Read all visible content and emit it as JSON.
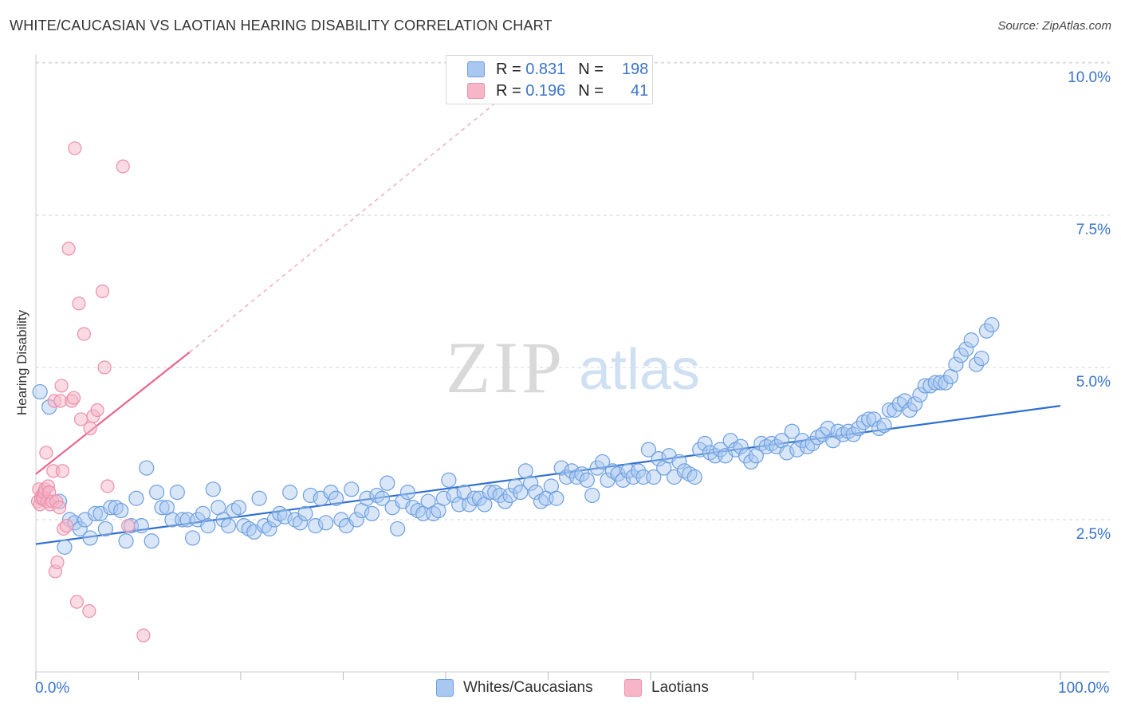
{
  "header": {
    "title": "WHITE/CAUCASIAN VS LAOTIAN HEARING DISABILITY CORRELATION CHART",
    "source": "Source: ZipAtlas.com"
  },
  "watermark": {
    "zip": "ZIP",
    "atlas": "atlas"
  },
  "legend": {
    "rows": [
      {
        "r_label": "R =",
        "r_value": "0.831",
        "n_label": "N =",
        "n_value": "198",
        "color": "#a9c8f0"
      },
      {
        "r_label": "R =",
        "r_value": "0.196",
        "n_label": "N =",
        "n_value": "41",
        "color": "#f6b6c8"
      }
    ]
  },
  "bottom_legend": [
    {
      "label": "Whites/Caucasians",
      "color": "#a9c8f0"
    },
    {
      "label": "Laotians",
      "color": "#f6b6c8"
    }
  ],
  "axes": {
    "x_tick_labels": [
      "0.0%",
      "100.0%"
    ],
    "y_tick_labels": [
      "2.5%",
      "5.0%",
      "7.5%",
      "10.0%"
    ]
  },
  "colors": {
    "blue_fill": "#a9c8f0",
    "blue_stroke": "#6d9fe0",
    "blue_line": "#2f6fce",
    "pink_fill": "#f6b6c8",
    "pink_stroke": "#ec8fab",
    "pink_line": "#e8648d",
    "tick_text": "#3a74c9"
  },
  "chart_data": {
    "type": "scatter",
    "title": "WHITE/CAUCASIAN VS LAOTIAN HEARING DISABILITY CORRELATION CHART",
    "xlabel": "",
    "ylabel": "Hearing Disability",
    "xlim": [
      0,
      100
    ],
    "ylim": [
      0,
      10.2
    ],
    "grid": "horizontal dashed",
    "legend_position": "top-center",
    "series": [
      {
        "name": "Whites/Caucasians",
        "r": 0.831,
        "n": 198,
        "trend": {
          "x0": 0,
          "y0": 2.1,
          "x1": 100,
          "y1": 4.37
        },
        "points": [
          [
            0.4,
            4.6
          ],
          [
            1.3,
            4.35
          ],
          [
            2.3,
            2.8
          ],
          [
            2.8,
            2.05
          ],
          [
            3.3,
            2.5
          ],
          [
            3.8,
            2.45
          ],
          [
            4.3,
            2.35
          ],
          [
            4.8,
            2.5
          ],
          [
            5.3,
            2.2
          ],
          [
            5.8,
            2.6
          ],
          [
            6.3,
            2.6
          ],
          [
            6.8,
            2.35
          ],
          [
            7.3,
            2.7
          ],
          [
            7.8,
            2.7
          ],
          [
            8.3,
            2.65
          ],
          [
            8.8,
            2.15
          ],
          [
            9.3,
            2.4
          ],
          [
            9.8,
            2.85
          ],
          [
            10.3,
            2.4
          ],
          [
            10.8,
            3.35
          ],
          [
            11.3,
            2.15
          ],
          [
            11.8,
            2.95
          ],
          [
            12.3,
            2.7
          ],
          [
            12.8,
            2.7
          ],
          [
            13.3,
            2.5
          ],
          [
            13.8,
            2.95
          ],
          [
            14.3,
            2.5
          ],
          [
            14.8,
            2.5
          ],
          [
            15.3,
            2.2
          ],
          [
            15.8,
            2.5
          ],
          [
            16.3,
            2.6
          ],
          [
            16.8,
            2.4
          ],
          [
            17.3,
            3.0
          ],
          [
            17.8,
            2.7
          ],
          [
            18.3,
            2.5
          ],
          [
            18.8,
            2.4
          ],
          [
            19.3,
            2.65
          ],
          [
            19.8,
            2.7
          ],
          [
            20.3,
            2.4
          ],
          [
            20.8,
            2.35
          ],
          [
            21.3,
            2.3
          ],
          [
            21.8,
            2.85
          ],
          [
            22.3,
            2.4
          ],
          [
            22.8,
            2.35
          ],
          [
            23.3,
            2.5
          ],
          [
            23.8,
            2.6
          ],
          [
            24.3,
            2.55
          ],
          [
            24.8,
            2.95
          ],
          [
            25.3,
            2.5
          ],
          [
            25.8,
            2.45
          ],
          [
            26.3,
            2.6
          ],
          [
            26.8,
            2.9
          ],
          [
            27.3,
            2.4
          ],
          [
            27.8,
            2.85
          ],
          [
            28.3,
            2.45
          ],
          [
            28.8,
            2.95
          ],
          [
            29.3,
            2.85
          ],
          [
            29.8,
            2.5
          ],
          [
            30.3,
            2.4
          ],
          [
            30.8,
            3.0
          ],
          [
            31.3,
            2.5
          ],
          [
            31.8,
            2.65
          ],
          [
            32.3,
            2.85
          ],
          [
            32.8,
            2.6
          ],
          [
            33.3,
            2.9
          ],
          [
            33.8,
            2.85
          ],
          [
            34.3,
            3.1
          ],
          [
            34.8,
            2.7
          ],
          [
            35.3,
            2.35
          ],
          [
            35.8,
            2.8
          ],
          [
            36.3,
            2.95
          ],
          [
            36.8,
            2.7
          ],
          [
            37.3,
            2.65
          ],
          [
            37.8,
            2.6
          ],
          [
            38.3,
            2.8
          ],
          [
            38.8,
            2.6
          ],
          [
            39.3,
            2.65
          ],
          [
            39.8,
            2.85
          ],
          [
            40.3,
            3.15
          ],
          [
            40.8,
            2.9
          ],
          [
            41.3,
            2.75
          ],
          [
            41.8,
            2.95
          ],
          [
            42.3,
            2.75
          ],
          [
            42.8,
            2.85
          ],
          [
            43.3,
            2.85
          ],
          [
            43.8,
            2.75
          ],
          [
            44.3,
            2.95
          ],
          [
            44.8,
            2.95
          ],
          [
            45.3,
            2.9
          ],
          [
            45.8,
            2.8
          ],
          [
            46.3,
            2.9
          ],
          [
            46.8,
            3.05
          ],
          [
            47.3,
            2.95
          ],
          [
            47.8,
            3.3
          ],
          [
            48.3,
            3.1
          ],
          [
            48.8,
            2.95
          ],
          [
            49.3,
            2.8
          ],
          [
            49.8,
            2.85
          ],
          [
            50.3,
            3.05
          ],
          [
            50.8,
            2.85
          ],
          [
            51.3,
            3.35
          ],
          [
            51.8,
            3.2
          ],
          [
            52.3,
            3.3
          ],
          [
            52.8,
            3.2
          ],
          [
            53.3,
            3.25
          ],
          [
            53.8,
            3.15
          ],
          [
            54.3,
            2.9
          ],
          [
            54.8,
            3.35
          ],
          [
            55.3,
            3.45
          ],
          [
            55.8,
            3.15
          ],
          [
            56.3,
            3.3
          ],
          [
            56.8,
            3.25
          ],
          [
            57.3,
            3.15
          ],
          [
            57.8,
            3.3
          ],
          [
            58.3,
            3.2
          ],
          [
            58.8,
            3.3
          ],
          [
            59.3,
            3.2
          ],
          [
            59.8,
            3.65
          ],
          [
            60.3,
            3.2
          ],
          [
            60.8,
            3.5
          ],
          [
            61.3,
            3.35
          ],
          [
            61.8,
            3.55
          ],
          [
            62.3,
            3.2
          ],
          [
            62.8,
            3.45
          ],
          [
            63.3,
            3.3
          ],
          [
            63.8,
            3.25
          ],
          [
            64.3,
            3.2
          ],
          [
            64.8,
            3.65
          ],
          [
            65.3,
            3.75
          ],
          [
            65.8,
            3.6
          ],
          [
            66.3,
            3.55
          ],
          [
            66.8,
            3.65
          ],
          [
            67.3,
            3.55
          ],
          [
            67.8,
            3.8
          ],
          [
            68.3,
            3.65
          ],
          [
            68.8,
            3.7
          ],
          [
            69.3,
            3.55
          ],
          [
            69.8,
            3.45
          ],
          [
            70.3,
            3.55
          ],
          [
            70.8,
            3.75
          ],
          [
            71.3,
            3.7
          ],
          [
            71.8,
            3.75
          ],
          [
            72.3,
            3.7
          ],
          [
            72.8,
            3.8
          ],
          [
            73.3,
            3.6
          ],
          [
            73.8,
            3.95
          ],
          [
            74.3,
            3.65
          ],
          [
            74.8,
            3.8
          ],
          [
            75.3,
            3.7
          ],
          [
            75.8,
            3.75
          ],
          [
            76.3,
            3.85
          ],
          [
            76.8,
            3.9
          ],
          [
            77.3,
            4.0
          ],
          [
            77.8,
            3.8
          ],
          [
            78.3,
            3.95
          ],
          [
            78.8,
            3.9
          ],
          [
            79.3,
            3.95
          ],
          [
            79.8,
            3.9
          ],
          [
            80.3,
            4.0
          ],
          [
            80.8,
            4.1
          ],
          [
            81.3,
            4.15
          ],
          [
            81.8,
            4.15
          ],
          [
            82.3,
            4.0
          ],
          [
            82.8,
            4.05
          ],
          [
            83.3,
            4.3
          ],
          [
            83.8,
            4.3
          ],
          [
            84.3,
            4.4
          ],
          [
            84.8,
            4.45
          ],
          [
            85.3,
            4.3
          ],
          [
            85.8,
            4.4
          ],
          [
            86.3,
            4.55
          ],
          [
            86.8,
            4.7
          ],
          [
            87.3,
            4.7
          ],
          [
            87.8,
            4.75
          ],
          [
            88.3,
            4.75
          ],
          [
            88.8,
            4.75
          ],
          [
            89.3,
            4.85
          ],
          [
            89.8,
            5.05
          ],
          [
            90.3,
            5.2
          ],
          [
            90.8,
            5.3
          ],
          [
            91.3,
            5.45
          ],
          [
            91.8,
            5.05
          ],
          [
            92.3,
            5.15
          ],
          [
            92.8,
            5.6
          ],
          [
            93.3,
            5.7
          ]
        ]
      },
      {
        "name": "Laotians",
        "r": 0.196,
        "n": 41,
        "trend": {
          "x0": 0,
          "y0": 3.25,
          "x1": 15,
          "y1": 5.25
        },
        "trend_extension": {
          "x1": 46,
          "y1": 9.5
        },
        "points": [
          [
            0.2,
            2.8
          ],
          [
            0.3,
            3.0
          ],
          [
            0.4,
            2.75
          ],
          [
            0.5,
            2.85
          ],
          [
            0.6,
            2.9
          ],
          [
            0.7,
            2.85
          ],
          [
            0.8,
            2.95
          ],
          [
            0.9,
            3.0
          ],
          [
            1.0,
            3.6
          ],
          [
            1.1,
            2.8
          ],
          [
            1.2,
            3.05
          ],
          [
            1.3,
            2.95
          ],
          [
            1.4,
            2.75
          ],
          [
            1.6,
            2.8
          ],
          [
            1.7,
            3.3
          ],
          [
            1.8,
            4.45
          ],
          [
            1.9,
            1.65
          ],
          [
            2.0,
            2.8
          ],
          [
            2.1,
            1.8
          ],
          [
            2.3,
            2.7
          ],
          [
            2.4,
            4.45
          ],
          [
            2.5,
            4.7
          ],
          [
            2.6,
            3.3
          ],
          [
            2.7,
            2.35
          ],
          [
            3.0,
            2.4
          ],
          [
            3.2,
            6.95
          ],
          [
            3.5,
            4.45
          ],
          [
            3.7,
            4.5
          ],
          [
            3.8,
            8.6
          ],
          [
            4.0,
            1.15
          ],
          [
            4.2,
            6.05
          ],
          [
            4.4,
            4.15
          ],
          [
            4.7,
            5.55
          ],
          [
            5.2,
            1.0
          ],
          [
            5.3,
            4.0
          ],
          [
            5.6,
            4.2
          ],
          [
            6.0,
            4.3
          ],
          [
            6.5,
            6.25
          ],
          [
            6.7,
            5.0
          ],
          [
            7.0,
            3.05
          ],
          [
            8.5,
            8.3
          ],
          [
            9.0,
            2.4
          ],
          [
            10.5,
            0.6
          ]
        ]
      }
    ]
  }
}
